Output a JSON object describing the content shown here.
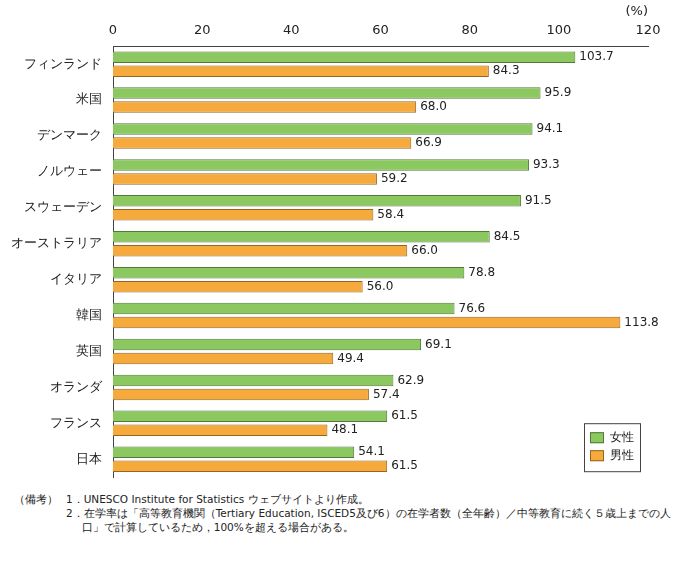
{
  "chart_data": {
    "type": "bar",
    "orientation": "horizontal",
    "categories": [
      "フィンランド",
      "米国",
      "デンマーク",
      "ノルウェー",
      "スウェーデン",
      "オーストラリア",
      "イタリア",
      "韓国",
      "英国",
      "オランダ",
      "フランス",
      "日本"
    ],
    "series": [
      {
        "name": "女性",
        "color": "#8cc860",
        "values": [
          103.7,
          95.9,
          94.1,
          93.3,
          91.5,
          84.5,
          78.8,
          76.6,
          69.1,
          62.9,
          61.5,
          54.1
        ],
        "value_labels": [
          "103.7",
          "95.9",
          "94.1",
          "93.3",
          "91.5",
          "84.5",
          "78.8",
          "76.6",
          "69.1",
          "62.9",
          "61.5",
          "54.1"
        ]
      },
      {
        "name": "男性",
        "color": "#f7aa3c",
        "values": [
          84.3,
          68.0,
          66.9,
          59.2,
          58.4,
          66.0,
          56.0,
          113.8,
          49.4,
          57.4,
          48.1,
          61.5
        ],
        "value_labels": [
          "84.3",
          "68.0",
          "66.9",
          "59.2",
          "58.4",
          "66.0",
          "56.0",
          "113.8",
          "49.4",
          "57.4",
          "48.1",
          "61.5"
        ]
      }
    ],
    "xlim": [
      0,
      120
    ],
    "xticks": [
      0,
      20,
      40,
      60,
      80,
      100,
      120
    ],
    "xlabel": "(%)",
    "grid": false,
    "legend": "lower right",
    "data_labels": true,
    "annotations": [
      "（備考）",
      "1．UNESCO Institute for Statistics ウェブサイトより作成。",
      "2．在学率は「高等教育機関（Tertiary Education, ISCED5及び6）の在学者数（全年齢）／中等教育に続く５歳上までの人口」で計算しているため，100%を超える場合がある。"
    ]
  }
}
